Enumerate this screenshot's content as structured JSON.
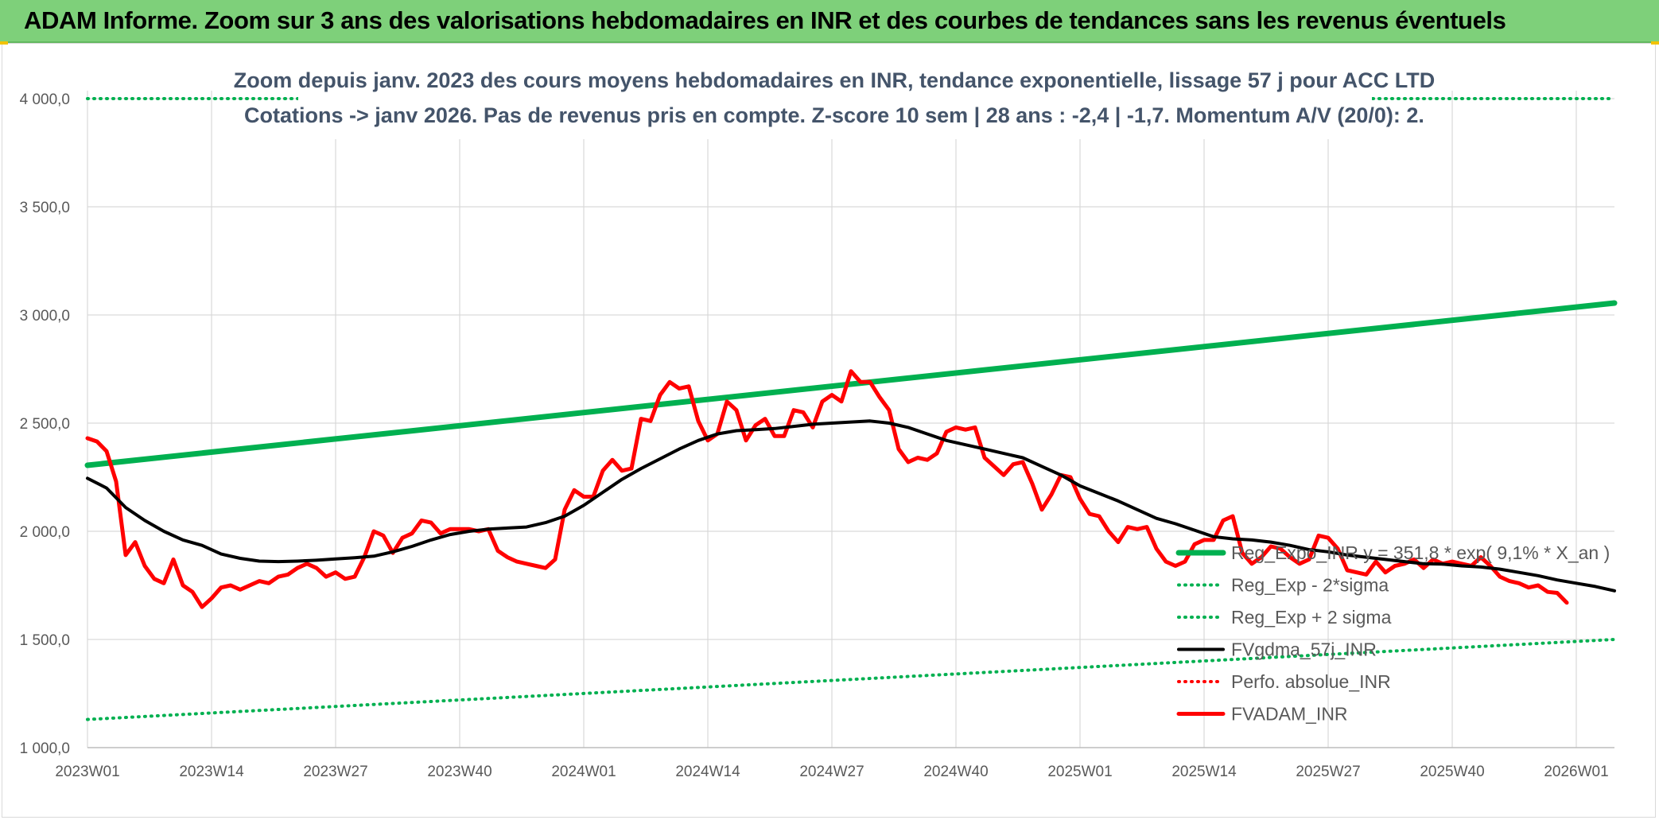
{
  "header": {
    "title": "ADAM Informe. Zoom sur 3 ans des valorisations hebdomadaires en INR et des courbes de tendances sans les revenus éventuels",
    "band_color": "#7ed07a"
  },
  "chart_data": {
    "type": "line",
    "title_line1": "Zoom depuis janv. 2023 des cours moyens hebdomadaires en INR, tendance exponentielle, lissage 57 j pour ACC LTD",
    "title_line2": "Cotations -> janv 2026. Pas de revenus pris en compte. Z-score 10 sem | 28 ans : -2,4 | -1,7. Momentum A/V (20/0): 2.",
    "ylim": [
      1000,
      4000
    ],
    "y_ticks": [
      "1 000,0",
      "1 500,0",
      "2 000,0",
      "2 500,0",
      "3 000,0",
      "3 500,0",
      "4 000,0"
    ],
    "x_ticks": [
      "2023W01",
      "2023W14",
      "2023W27",
      "2023W40",
      "2024W01",
      "2024W14",
      "2024W27",
      "2024W40",
      "2025W01",
      "2025W14",
      "2025W27",
      "2025W40",
      "2026W01"
    ],
    "x_range_weeks": [
      0,
      160
    ],
    "grid": true,
    "legend_position": "right",
    "series": [
      {
        "name": "Reg_Expo_INR  y = 351,8 * exp( 9,1% *  X_an )",
        "color": "#00b050",
        "style": "solid-thick",
        "values": [
          [
            0,
            2305
          ],
          [
            160,
            3055
          ]
        ]
      },
      {
        "name": "Reg_Exp - 2*sigma",
        "color": "#00b050",
        "style": "dotted",
        "values": [
          [
            0,
            1130
          ],
          [
            160,
            1500
          ]
        ]
      },
      {
        "name": "Reg_Exp + 2 sigma",
        "color": "#00b050",
        "style": "dotted",
        "values": [
          [
            0,
            4000
          ],
          [
            160,
            4000
          ]
        ]
      },
      {
        "name": "FVgdma_57j_INR",
        "color": "#000000",
        "style": "solid",
        "values": [
          [
            0,
            2245
          ],
          [
            2,
            2200
          ],
          [
            4,
            2110
          ],
          [
            6,
            2050
          ],
          [
            8,
            2000
          ],
          [
            10,
            1960
          ],
          [
            12,
            1935
          ],
          [
            14,
            1895
          ],
          [
            16,
            1875
          ],
          [
            18,
            1862
          ],
          [
            20,
            1860
          ],
          [
            22,
            1862
          ],
          [
            24,
            1866
          ],
          [
            26,
            1872
          ],
          [
            28,
            1878
          ],
          [
            30,
            1885
          ],
          [
            32,
            1905
          ],
          [
            34,
            1930
          ],
          [
            36,
            1960
          ],
          [
            38,
            1985
          ],
          [
            40,
            2000
          ],
          [
            42,
            2010
          ],
          [
            44,
            2015
          ],
          [
            46,
            2020
          ],
          [
            48,
            2040
          ],
          [
            50,
            2070
          ],
          [
            52,
            2120
          ],
          [
            54,
            2180
          ],
          [
            56,
            2240
          ],
          [
            58,
            2290
          ],
          [
            60,
            2335
          ],
          [
            62,
            2380
          ],
          [
            64,
            2420
          ],
          [
            66,
            2450
          ],
          [
            68,
            2465
          ],
          [
            70,
            2470
          ],
          [
            72,
            2475
          ],
          [
            74,
            2485
          ],
          [
            76,
            2495
          ],
          [
            78,
            2500
          ],
          [
            80,
            2505
          ],
          [
            82,
            2510
          ],
          [
            84,
            2500
          ],
          [
            86,
            2480
          ],
          [
            88,
            2450
          ],
          [
            90,
            2420
          ],
          [
            92,
            2400
          ],
          [
            94,
            2380
          ],
          [
            96,
            2360
          ],
          [
            98,
            2340
          ],
          [
            100,
            2300
          ],
          [
            102,
            2260
          ],
          [
            104,
            2210
          ],
          [
            106,
            2175
          ],
          [
            108,
            2140
          ],
          [
            110,
            2100
          ],
          [
            112,
            2060
          ],
          [
            114,
            2035
          ],
          [
            116,
            2005
          ],
          [
            118,
            1975
          ],
          [
            120,
            1965
          ],
          [
            122,
            1960
          ],
          [
            124,
            1950
          ],
          [
            126,
            1935
          ],
          [
            128,
            1915
          ],
          [
            130,
            1905
          ],
          [
            132,
            1890
          ],
          [
            134,
            1880
          ],
          [
            136,
            1870
          ],
          [
            138,
            1860
          ],
          [
            140,
            1850
          ],
          [
            142,
            1848
          ],
          [
            144,
            1840
          ],
          [
            146,
            1835
          ],
          [
            148,
            1825
          ],
          [
            150,
            1810
          ],
          [
            152,
            1795
          ],
          [
            154,
            1775
          ],
          [
            156,
            1760
          ],
          [
            158,
            1745
          ],
          [
            160,
            1725
          ]
        ]
      },
      {
        "name": "Perfo. absolue_INR",
        "color": "#ff0000",
        "style": "dotted",
        "values": []
      },
      {
        "name": "FVADAM_INR",
        "color": "#ff0000",
        "style": "solid-thick",
        "values": [
          [
            0,
            2430
          ],
          [
            1,
            2415
          ],
          [
            2,
            2370
          ],
          [
            3,
            2230
          ],
          [
            4,
            1890
          ],
          [
            5,
            1950
          ],
          [
            6,
            1840
          ],
          [
            7,
            1780
          ],
          [
            8,
            1760
          ],
          [
            9,
            1870
          ],
          [
            10,
            1750
          ],
          [
            11,
            1720
          ],
          [
            12,
            1650
          ],
          [
            13,
            1690
          ],
          [
            14,
            1740
          ],
          [
            15,
            1750
          ],
          [
            16,
            1730
          ],
          [
            17,
            1750
          ],
          [
            18,
            1770
          ],
          [
            19,
            1760
          ],
          [
            20,
            1790
          ],
          [
            21,
            1800
          ],
          [
            22,
            1830
          ],
          [
            23,
            1850
          ],
          [
            24,
            1830
          ],
          [
            25,
            1790
          ],
          [
            26,
            1810
          ],
          [
            27,
            1780
          ],
          [
            28,
            1790
          ],
          [
            29,
            1880
          ],
          [
            30,
            2000
          ],
          [
            31,
            1980
          ],
          [
            32,
            1900
          ],
          [
            33,
            1970
          ],
          [
            34,
            1990
          ],
          [
            35,
            2050
          ],
          [
            36,
            2040
          ],
          [
            37,
            1990
          ],
          [
            38,
            2010
          ],
          [
            39,
            2010
          ],
          [
            40,
            2010
          ],
          [
            41,
            2000
          ],
          [
            42,
            2010
          ],
          [
            43,
            1910
          ],
          [
            44,
            1880
          ],
          [
            45,
            1860
          ],
          [
            46,
            1850
          ],
          [
            47,
            1840
          ],
          [
            48,
            1830
          ],
          [
            49,
            1870
          ],
          [
            50,
            2100
          ],
          [
            51,
            2190
          ],
          [
            52,
            2160
          ],
          [
            53,
            2160
          ],
          [
            54,
            2280
          ],
          [
            55,
            2330
          ],
          [
            56,
            2280
          ],
          [
            57,
            2290
          ],
          [
            58,
            2520
          ],
          [
            59,
            2510
          ],
          [
            60,
            2630
          ],
          [
            61,
            2690
          ],
          [
            62,
            2660
          ],
          [
            63,
            2670
          ],
          [
            64,
            2510
          ],
          [
            65,
            2420
          ],
          [
            66,
            2450
          ],
          [
            67,
            2600
          ],
          [
            68,
            2560
          ],
          [
            69,
            2420
          ],
          [
            70,
            2490
          ],
          [
            71,
            2520
          ],
          [
            72,
            2440
          ],
          [
            73,
            2440
          ],
          [
            74,
            2560
          ],
          [
            75,
            2550
          ],
          [
            76,
            2480
          ],
          [
            77,
            2600
          ],
          [
            78,
            2630
          ],
          [
            79,
            2600
          ],
          [
            80,
            2740
          ],
          [
            81,
            2690
          ],
          [
            82,
            2690
          ],
          [
            83,
            2620
          ],
          [
            84,
            2560
          ],
          [
            85,
            2380
          ],
          [
            86,
            2320
          ],
          [
            87,
            2340
          ],
          [
            88,
            2330
          ],
          [
            89,
            2360
          ],
          [
            90,
            2460
          ],
          [
            91,
            2480
          ],
          [
            92,
            2470
          ],
          [
            93,
            2480
          ],
          [
            94,
            2340
          ],
          [
            95,
            2300
          ],
          [
            96,
            2260
          ],
          [
            97,
            2310
          ],
          [
            98,
            2320
          ],
          [
            99,
            2220
          ],
          [
            100,
            2100
          ],
          [
            101,
            2170
          ],
          [
            102,
            2260
          ],
          [
            103,
            2250
          ],
          [
            104,
            2150
          ],
          [
            105,
            2080
          ],
          [
            106,
            2070
          ],
          [
            107,
            2000
          ],
          [
            108,
            1950
          ],
          [
            109,
            2020
          ],
          [
            110,
            2010
          ],
          [
            111,
            2020
          ],
          [
            112,
            1920
          ],
          [
            113,
            1860
          ],
          [
            114,
            1840
          ],
          [
            115,
            1860
          ],
          [
            116,
            1940
          ],
          [
            117,
            1960
          ],
          [
            118,
            1960
          ],
          [
            119,
            2050
          ],
          [
            120,
            2070
          ],
          [
            121,
            1900
          ],
          [
            122,
            1850
          ],
          [
            123,
            1880
          ],
          [
            124,
            1930
          ],
          [
            125,
            1920
          ],
          [
            126,
            1880
          ],
          [
            127,
            1850
          ],
          [
            128,
            1870
          ],
          [
            129,
            1980
          ],
          [
            130,
            1970
          ],
          [
            131,
            1920
          ],
          [
            132,
            1820
          ],
          [
            133,
            1810
          ],
          [
            134,
            1800
          ],
          [
            135,
            1860
          ],
          [
            136,
            1810
          ],
          [
            137,
            1840
          ],
          [
            138,
            1850
          ],
          [
            139,
            1870
          ],
          [
            140,
            1830
          ],
          [
            141,
            1870
          ],
          [
            142,
            1850
          ],
          [
            143,
            1860
          ],
          [
            144,
            1850
          ],
          [
            145,
            1840
          ],
          [
            146,
            1880
          ],
          [
            147,
            1840
          ],
          [
            148,
            1790
          ],
          [
            149,
            1770
          ],
          [
            150,
            1760
          ],
          [
            151,
            1740
          ],
          [
            152,
            1750
          ],
          [
            153,
            1720
          ],
          [
            154,
            1715
          ],
          [
            155,
            1670
          ]
        ]
      }
    ]
  }
}
